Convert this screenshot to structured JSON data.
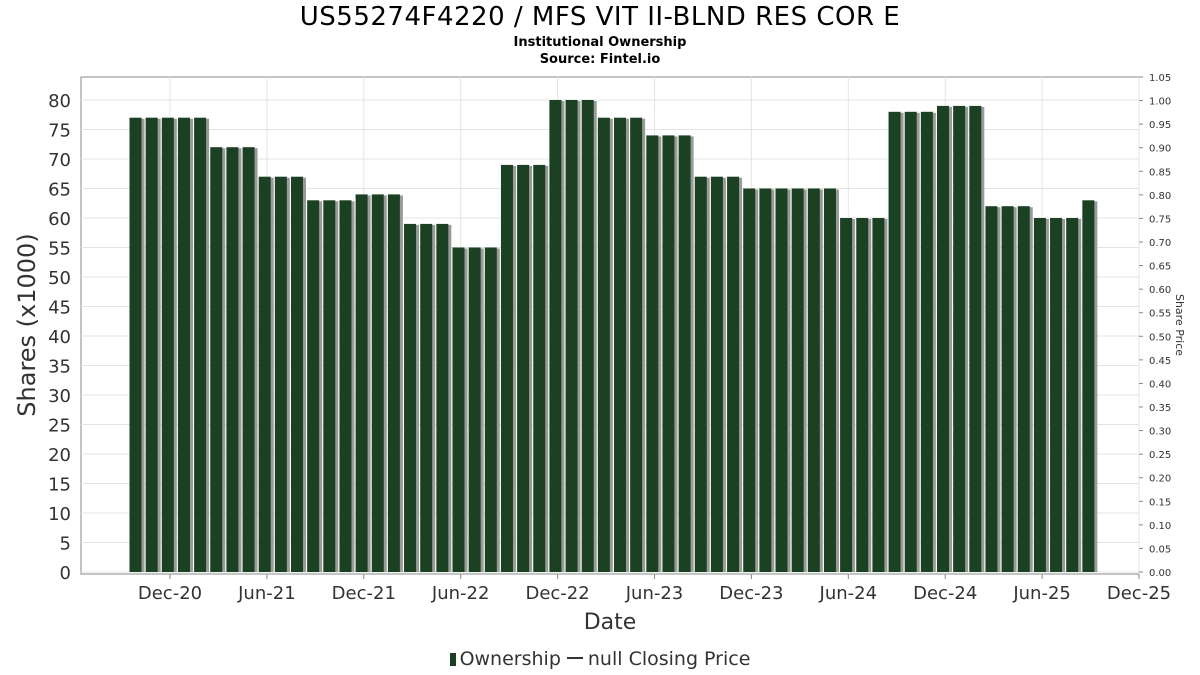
{
  "chart_data": {
    "type": "bar",
    "title": "US55274F4220 / MFS VIT II-BLND RES COR E",
    "subtitle_lines": [
      "Institutional Ownership",
      "Source: Fintel.io"
    ],
    "xlabel": "Date",
    "ylabel": "Shares (x1000)",
    "y2label": "Share Price",
    "ylim": [
      0,
      83
    ],
    "y2lim": [
      0,
      1.05
    ],
    "yticks": [
      "0",
      "5",
      "10",
      "15",
      "20",
      "25",
      "30",
      "35",
      "40",
      "45",
      "50",
      "55",
      "60",
      "65",
      "70",
      "75",
      "80"
    ],
    "y2ticks": [
      "0.00",
      "0.05",
      "0.10",
      "0.15",
      "0.20",
      "0.25",
      "0.30",
      "0.35",
      "0.40",
      "0.45",
      "0.50",
      "0.55",
      "0.60",
      "0.65",
      "0.70",
      "0.75",
      "0.80",
      "0.85",
      "0.90",
      "0.95",
      "1.00",
      "1.05"
    ],
    "xticks": [
      "Dec-20",
      "Jun-21",
      "Dec-21",
      "Jun-22",
      "Dec-22",
      "Jun-23",
      "Dec-23",
      "Jun-24",
      "Dec-24",
      "Jun-25",
      "Dec-25"
    ],
    "grid": true,
    "legend_position": "bottom",
    "series": [
      {
        "name": "Ownership",
        "color": "#1a4222",
        "values": [
          77,
          77,
          77,
          77,
          77,
          72,
          72,
          72,
          67,
          67,
          67,
          63,
          63,
          63,
          64,
          64,
          64,
          59,
          59,
          59,
          55,
          55,
          55,
          69,
          69,
          69,
          80,
          80,
          80,
          77,
          77,
          77,
          74,
          74,
          74,
          67,
          67,
          67,
          65,
          65,
          65,
          65,
          65,
          65,
          60,
          60,
          60,
          78,
          78,
          78,
          79,
          79,
          79,
          62,
          62,
          62,
          60,
          60,
          60,
          63
        ]
      }
    ],
    "legend": {
      "ownership_label": "Ownership",
      "price_label": "null Closing Price"
    }
  }
}
